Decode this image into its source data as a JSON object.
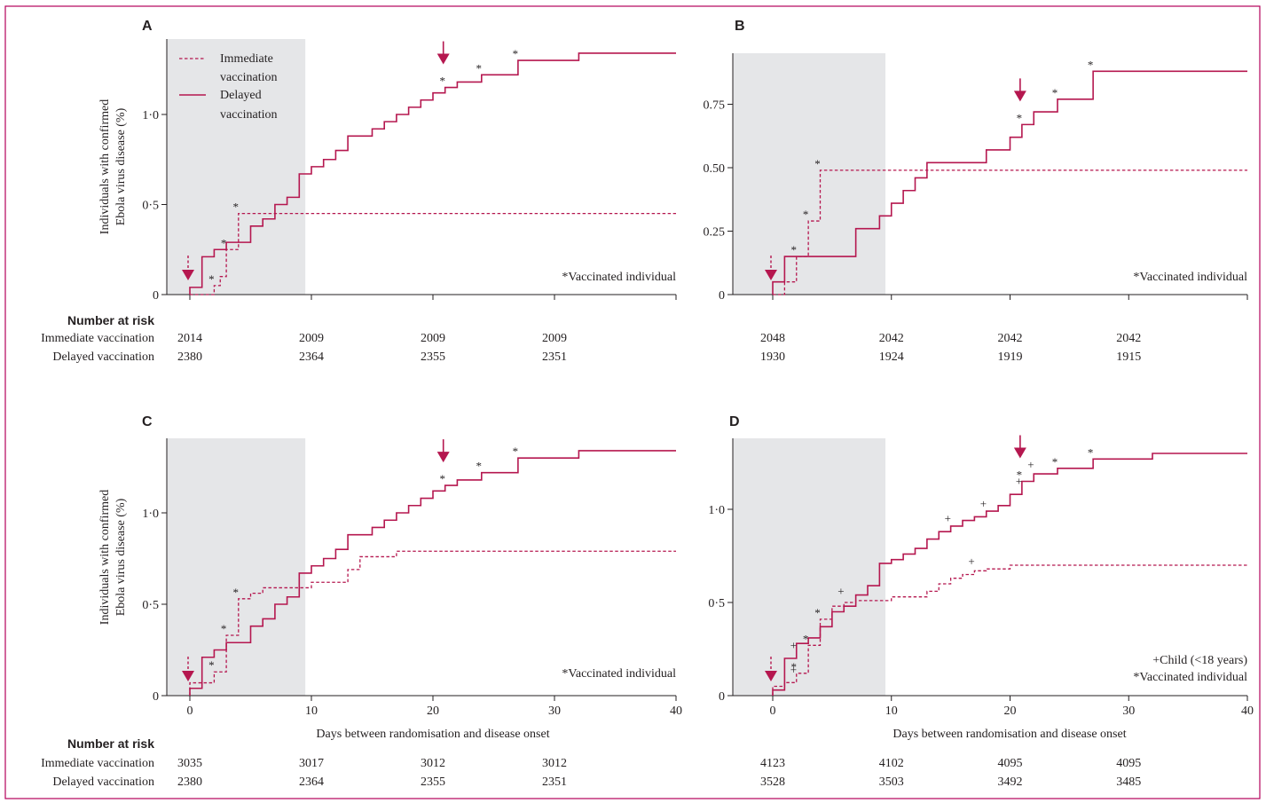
{
  "figure": {
    "legend": {
      "immediate": [
        "Immediate",
        "vaccination"
      ],
      "delayed": [
        "Delayed",
        "vaccination"
      ]
    },
    "risk_header": "Number at risk",
    "risk_row_labels": [
      "Immediate vaccination",
      "Delayed vaccination"
    ],
    "x_label": "Days between randomisation and disease onset",
    "y_label": [
      "Individuals with confirmed",
      "Ebola virus disease (%)"
    ]
  },
  "chart_data": [
    {
      "panel": "A",
      "type": "line",
      "step": true,
      "xlim": [
        -2,
        40
      ],
      "ylim": [
        0,
        1.4
      ],
      "shaded_x": [
        -2,
        9.5
      ],
      "x_ticks": [
        0,
        10,
        20,
        30,
        40
      ],
      "x_tick_labels": [
        "",
        "",
        "",
        "",
        ""
      ],
      "y_ticks": [
        0,
        0.5,
        1.0
      ],
      "y_tick_labels": [
        "0",
        "0·5",
        "1·0"
      ],
      "note": [
        "*Vaccinated individual"
      ],
      "series": [
        {
          "name": "Immediate vaccination",
          "style": "dashed",
          "x": [
            0,
            2,
            2.5,
            3,
            4,
            40
          ],
          "y": [
            0,
            0.05,
            0.1,
            0.25,
            0.45,
            0.45
          ]
        },
        {
          "name": "Delayed vaccination",
          "style": "solid",
          "x": [
            0,
            1,
            2,
            3,
            5,
            6,
            7,
            8,
            9,
            10,
            11,
            12,
            13,
            15,
            16,
            17,
            18,
            19,
            20,
            21,
            22,
            24,
            27,
            32,
            40
          ],
          "y": [
            0.04,
            0.21,
            0.25,
            0.29,
            0.38,
            0.42,
            0.5,
            0.54,
            0.67,
            0.71,
            0.75,
            0.8,
            0.88,
            0.92,
            0.96,
            1.0,
            1.04,
            1.08,
            1.12,
            1.15,
            1.18,
            1.22,
            1.3,
            1.34,
            1.34
          ]
        }
      ],
      "vaccinated_marks": [
        {
          "x": 2,
          "y": 0.05
        },
        {
          "x": 3,
          "y": 0.25
        },
        {
          "x": 4,
          "y": 0.45
        },
        {
          "x": 21,
          "y": 1.15
        },
        {
          "x": 24,
          "y": 1.22
        },
        {
          "x": 27,
          "y": 1.3
        }
      ],
      "child_marks": [],
      "arrows": [
        {
          "x": 0,
          "style": "dashed"
        },
        {
          "x": 21,
          "style": "solid"
        }
      ],
      "risk": {
        "x": [
          0,
          10,
          20,
          30
        ],
        "immediate": [
          "2014",
          "2009",
          "2009",
          "2009"
        ],
        "delayed": [
          "2380",
          "2364",
          "2355",
          "2351"
        ]
      }
    },
    {
      "panel": "B",
      "type": "line",
      "step": true,
      "xlim": [
        -2,
        40
      ],
      "ylim": [
        0,
        0.95
      ],
      "shaded_x": [
        -2,
        9.5
      ],
      "x_ticks": [
        0,
        10,
        20,
        30,
        40
      ],
      "x_tick_labels": [
        "",
        "",
        "",
        "",
        ""
      ],
      "y_ticks": [
        0,
        0.25,
        0.5,
        0.75
      ],
      "y_tick_labels": [
        "0",
        "0.25",
        "0.50",
        "0.75"
      ],
      "note": [
        "*Vaccinated individual"
      ],
      "series": [
        {
          "name": "Immediate vaccination",
          "style": "dashed",
          "x": [
            0,
            1,
            2,
            3,
            4,
            40
          ],
          "y": [
            0,
            0.05,
            0.15,
            0.29,
            0.49,
            0.49
          ]
        },
        {
          "name": "Delayed vaccination",
          "style": "solid",
          "x": [
            0,
            1,
            7,
            9,
            10,
            11,
            12,
            13,
            14,
            18,
            20,
            21,
            22,
            24,
            27,
            40
          ],
          "y": [
            0.05,
            0.15,
            0.26,
            0.31,
            0.36,
            0.41,
            0.46,
            0.52,
            0.52,
            0.57,
            0.62,
            0.67,
            0.72,
            0.77,
            0.88,
            0.88
          ]
        }
      ],
      "vaccinated_marks": [
        {
          "x": 2,
          "y": 0.15
        },
        {
          "x": 3,
          "y": 0.29
        },
        {
          "x": 4,
          "y": 0.49
        },
        {
          "x": 21,
          "y": 0.67
        },
        {
          "x": 24,
          "y": 0.77
        },
        {
          "x": 27,
          "y": 0.88
        }
      ],
      "child_marks": [],
      "arrows": [
        {
          "x": 0,
          "style": "dashed"
        },
        {
          "x": 21,
          "style": "solid"
        }
      ],
      "risk": {
        "x": [
          0,
          10,
          20,
          30
        ],
        "immediate": [
          "2048",
          "2042",
          "2042",
          "2042"
        ],
        "delayed": [
          "1930",
          "1924",
          "1919",
          "1915"
        ]
      }
    },
    {
      "panel": "C",
      "type": "line",
      "step": true,
      "xlim": [
        -2,
        40
      ],
      "ylim": [
        0,
        1.4
      ],
      "shaded_x": [
        -2,
        9.5
      ],
      "x_ticks": [
        0,
        10,
        20,
        30,
        40
      ],
      "x_tick_labels": [
        "0",
        "10",
        "20",
        "30",
        "40"
      ],
      "y_ticks": [
        0,
        0.5,
        1.0
      ],
      "y_tick_labels": [
        "0",
        "0·5",
        "1·0"
      ],
      "note": [
        "*Vaccinated individual"
      ],
      "series": [
        {
          "name": "Immediate vaccination",
          "style": "dashed",
          "x": [
            0,
            2,
            3,
            4,
            5,
            6,
            10,
            13,
            14,
            17,
            40
          ],
          "y": [
            0.07,
            0.13,
            0.33,
            0.53,
            0.56,
            0.59,
            0.62,
            0.69,
            0.76,
            0.79,
            0.79
          ]
        },
        {
          "name": "Delayed vaccination",
          "style": "solid",
          "x": [
            0,
            1,
            2,
            3,
            5,
            6,
            7,
            8,
            9,
            10,
            11,
            12,
            13,
            15,
            16,
            17,
            18,
            19,
            20,
            21,
            22,
            24,
            27,
            32,
            40
          ],
          "y": [
            0.04,
            0.21,
            0.25,
            0.29,
            0.38,
            0.42,
            0.5,
            0.54,
            0.67,
            0.71,
            0.75,
            0.8,
            0.88,
            0.92,
            0.96,
            1.0,
            1.04,
            1.08,
            1.12,
            1.15,
            1.18,
            1.22,
            1.3,
            1.34,
            1.34
          ]
        }
      ],
      "vaccinated_marks": [
        {
          "x": 2,
          "y": 0.13
        },
        {
          "x": 3,
          "y": 0.33
        },
        {
          "x": 4,
          "y": 0.53
        },
        {
          "x": 21,
          "y": 1.15
        },
        {
          "x": 24,
          "y": 1.22
        },
        {
          "x": 27,
          "y": 1.3
        }
      ],
      "child_marks": [],
      "arrows": [
        {
          "x": 0,
          "style": "dashed"
        },
        {
          "x": 21,
          "style": "solid"
        }
      ],
      "risk": {
        "x": [
          0,
          10,
          20,
          30
        ],
        "immediate": [
          "3035",
          "3017",
          "3012",
          "3012"
        ],
        "delayed": [
          "2380",
          "2364",
          "2355",
          "2351"
        ]
      }
    },
    {
      "panel": "D",
      "type": "line",
      "step": true,
      "xlim": [
        -2,
        40
      ],
      "ylim": [
        0,
        1.4
      ],
      "shaded_x": [
        -2,
        9.5
      ],
      "x_ticks": [
        0,
        10,
        20,
        30,
        40
      ],
      "x_tick_labels": [
        "0",
        "10",
        "20",
        "30",
        "40"
      ],
      "y_ticks": [
        0,
        0.5,
        1.0
      ],
      "y_tick_labels": [
        "0",
        "0·5",
        "1·0"
      ],
      "note": [
        "+Child (<18 years)",
        "*Vaccinated individual"
      ],
      "series": [
        {
          "name": "Immediate vaccination",
          "style": "dashed",
          "x": [
            0,
            1,
            2,
            3,
            4,
            5,
            6,
            7,
            10,
            13,
            14,
            15,
            16,
            17,
            18,
            20,
            40
          ],
          "y": [
            0.05,
            0.07,
            0.12,
            0.27,
            0.41,
            0.48,
            0.5,
            0.51,
            0.53,
            0.56,
            0.6,
            0.63,
            0.65,
            0.67,
            0.68,
            0.7,
            0.7
          ]
        },
        {
          "name": "Delayed vaccination",
          "style": "solid",
          "x": [
            0,
            1,
            2,
            3,
            4,
            5,
            6,
            7,
            8,
            9,
            10,
            11,
            12,
            13,
            14,
            15,
            16,
            17,
            18,
            19,
            20,
            21,
            22,
            24,
            27,
            32,
            40
          ],
          "y": [
            0.03,
            0.2,
            0.28,
            0.31,
            0.37,
            0.45,
            0.48,
            0.54,
            0.59,
            0.71,
            0.73,
            0.76,
            0.79,
            0.84,
            0.88,
            0.91,
            0.94,
            0.96,
            0.99,
            1.02,
            1.08,
            1.15,
            1.19,
            1.22,
            1.27,
            1.3,
            1.3
          ]
        }
      ],
      "vaccinated_marks": [
        {
          "x": 2,
          "y": 0.12
        },
        {
          "x": 3,
          "y": 0.27
        },
        {
          "x": 4,
          "y": 0.41
        },
        {
          "x": 21,
          "y": 1.15
        },
        {
          "x": 24,
          "y": 1.22
        },
        {
          "x": 27,
          "y": 1.27
        }
      ],
      "child_marks": [
        {
          "x": 1,
          "y": 0.12
        },
        {
          "x": 1,
          "y": 0.25
        },
        {
          "x": 5,
          "y": 0.54
        },
        {
          "x": 14,
          "y": 0.93
        },
        {
          "x": 16,
          "y": 0.7
        },
        {
          "x": 17,
          "y": 1.01
        },
        {
          "x": 20,
          "y": 1.13
        },
        {
          "x": 21,
          "y": 1.22
        }
      ],
      "arrows": [
        {
          "x": 0,
          "style": "dashed"
        },
        {
          "x": 21,
          "style": "solid"
        }
      ],
      "risk": {
        "x": [
          0,
          10,
          20,
          30
        ],
        "immediate": [
          "4123",
          "4102",
          "4095",
          "4095"
        ],
        "delayed": [
          "3528",
          "3503",
          "3492",
          "3485"
        ]
      }
    }
  ]
}
